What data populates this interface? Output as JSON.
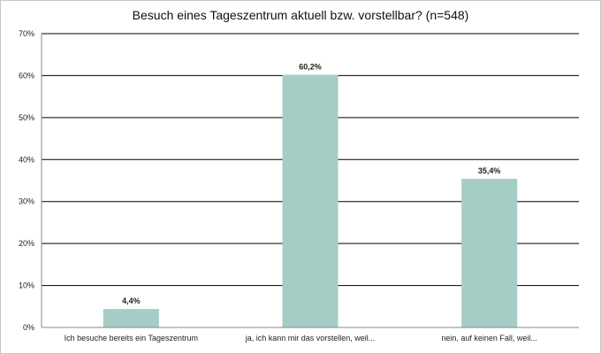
{
  "chart_data": {
    "type": "bar",
    "title": "Besuch eines Tageszentrum aktuell bzw. vorstellbar? (n=548)",
    "categories": [
      "Ich besuche bereits ein Tageszentrum",
      "ja, ich kann mir das vorstellen, weil...",
      "nein,  auf keinen Fall, weil..."
    ],
    "values": [
      4.4,
      60.2,
      35.4
    ],
    "data_labels": [
      "4,4%",
      "60,2%",
      "35,4%"
    ],
    "ylim": [
      0,
      70
    ],
    "yticks": [
      0,
      10,
      20,
      30,
      40,
      50,
      60,
      70
    ],
    "ytick_labels": [
      "0%",
      "10%",
      "20%",
      "30%",
      "40%",
      "50%",
      "60%",
      "70%"
    ],
    "xlabel": "",
    "ylabel": "",
    "grid": true,
    "bar_color": "#a6ccc6",
    "grid_color": "#000000"
  }
}
